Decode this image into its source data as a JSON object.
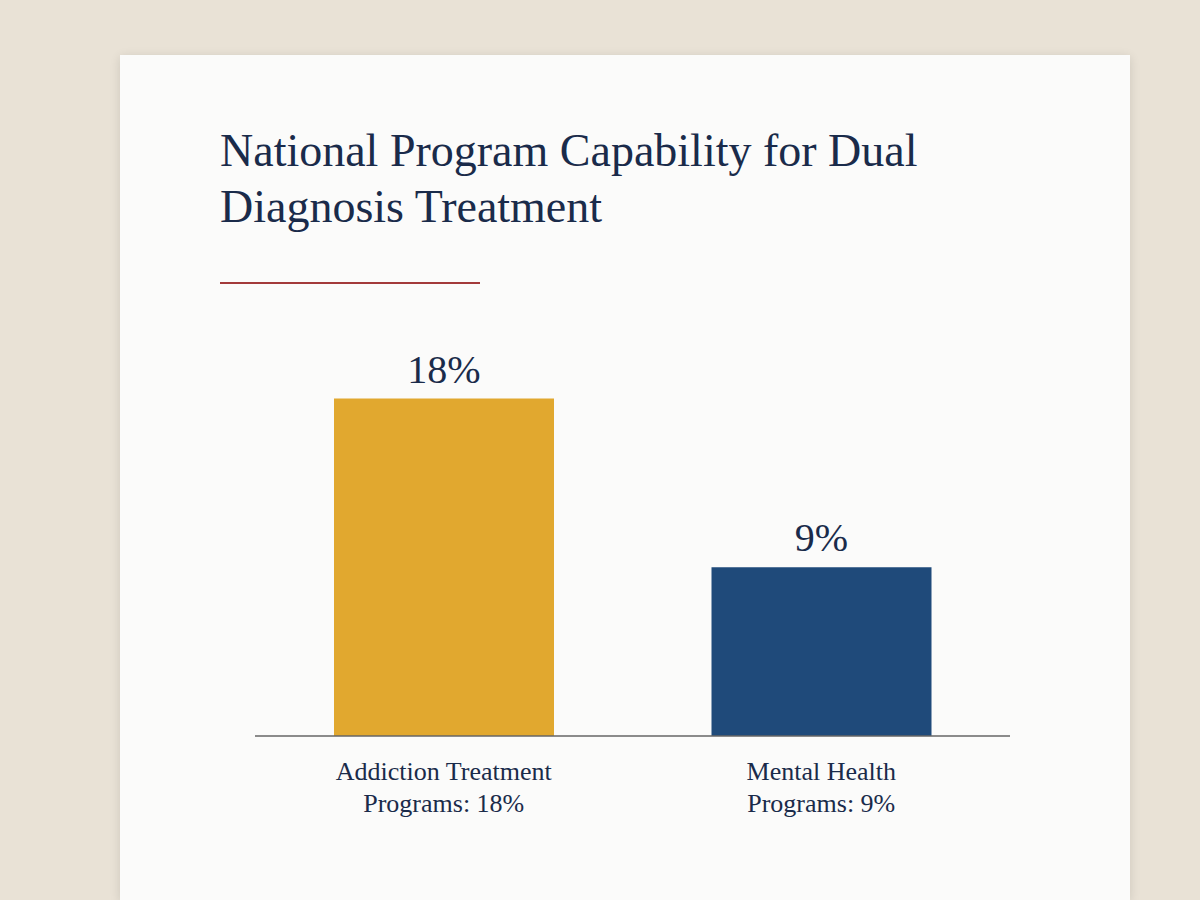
{
  "chart_data": {
    "type": "bar",
    "title": "National Program Capability for Dual Diagnosis Treatment",
    "categories": [
      "Addiction Treatment Programs: 18%",
      "Mental Health Programs: 9%"
    ],
    "values": [
      18,
      9
    ],
    "value_labels": [
      "18%",
      "9%"
    ],
    "colors": [
      "#e1a82f",
      "#1f4a7a"
    ],
    "ylim": [
      0,
      20
    ],
    "data_labels": true,
    "tick_labels": "x",
    "grid": false
  }
}
